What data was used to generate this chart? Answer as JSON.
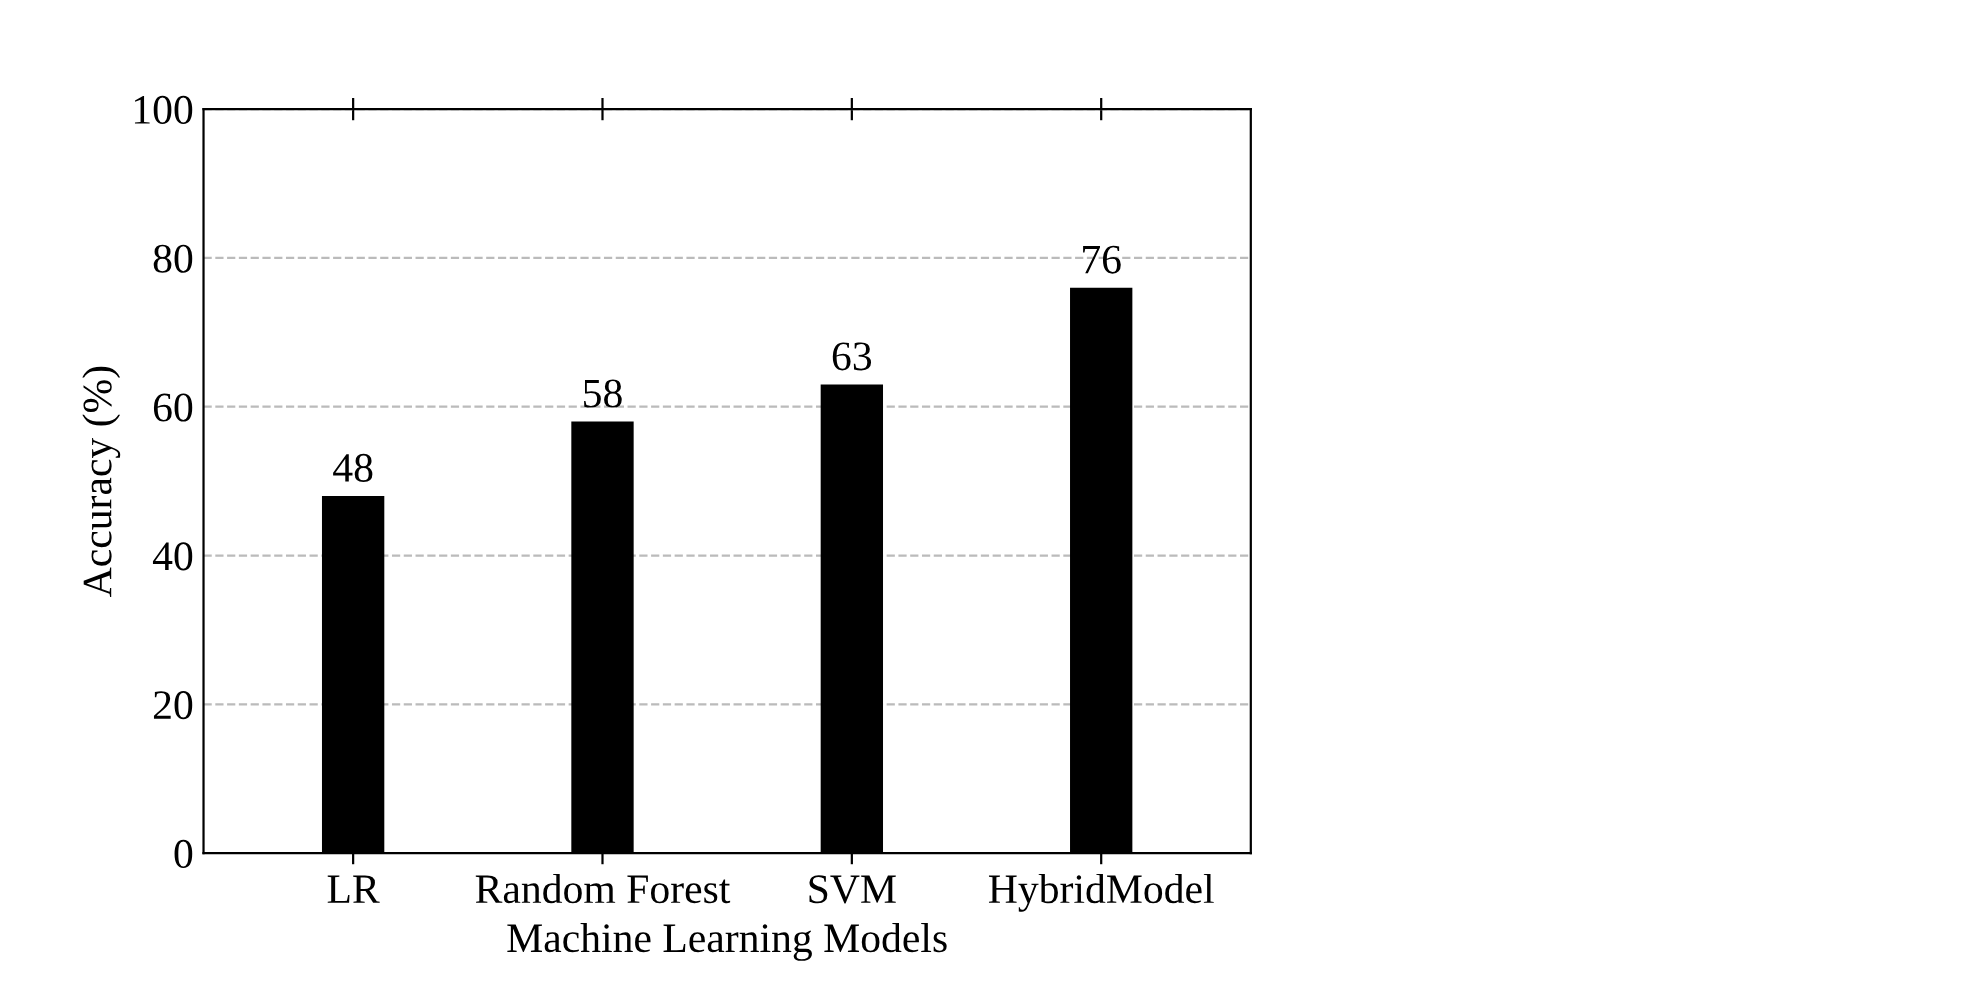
{
  "chart_data": {
    "type": "bar",
    "xlabel": "Machine Learning Models",
    "ylabel": "Accuracy (%)",
    "categories": [
      "LR",
      "Random Forest",
      "SVM",
      "HybridModel"
    ],
    "values": [
      48,
      58,
      63,
      76
    ],
    "color": "#000000",
    "ylim": [
      0,
      100
    ],
    "yticks": [
      0,
      20,
      40,
      60,
      80,
      100
    ],
    "grid": "y",
    "data_labels": true
  }
}
